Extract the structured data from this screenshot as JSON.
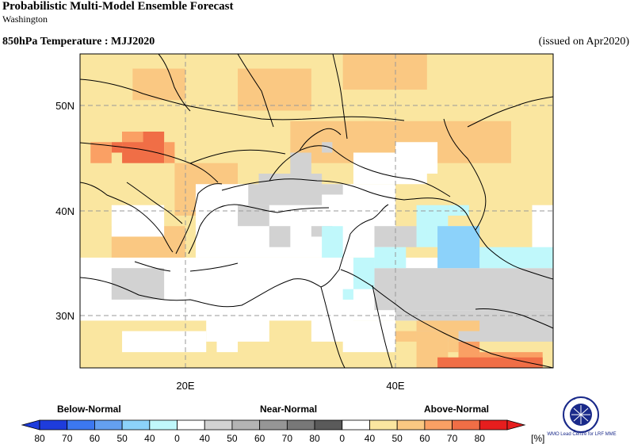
{
  "header": {
    "title": "Probabilistic Multi-Model Ensemble Forecast",
    "subtitle": "Washington",
    "variable": "850hPa Temperature : MJJ2020",
    "issued": "(issued on Apr2020)"
  },
  "map": {
    "lon_labels": [
      "20E",
      "40E"
    ],
    "lat_labels": [
      "50N",
      "40N",
      "30N"
    ],
    "cells": [
      {
        "lon": [
          10,
          56
        ],
        "lat": [
          24.5,
          55
        ],
        "c": "a40"
      },
      {
        "lon": [
          15,
          20
        ],
        "lat": [
          50,
          53
        ],
        "c": "a50"
      },
      {
        "lon": [
          25,
          32
        ],
        "lat": [
          49,
          53
        ],
        "c": "a50"
      },
      {
        "lon": [
          35,
          43
        ],
        "lat": [
          51,
          55
        ],
        "c": "a50"
      },
      {
        "lon": [
          30,
          38
        ],
        "lat": [
          44,
          48
        ],
        "c": "a50"
      },
      {
        "lon": [
          37,
          51
        ],
        "lat": [
          44,
          48
        ],
        "c": "a50"
      },
      {
        "lon": [
          19,
          25
        ],
        "lat": [
          39,
          44
        ],
        "c": "a50"
      },
      {
        "lon": [
          13,
          20
        ],
        "lat": [
          34,
          38
        ],
        "c": "a50"
      },
      {
        "lon": [
          10,
          56
        ],
        "lat": [
          29,
          35
        ],
        "c": "w"
      },
      {
        "lon": [
          13,
          18
        ],
        "lat": [
          37,
          40
        ],
        "c": "w"
      },
      {
        "lon": [
          21,
          40
        ],
        "lat": [
          35,
          42
        ],
        "c": "w"
      },
      {
        "lon": [
          36,
          43
        ],
        "lat": [
          42,
          45
        ],
        "c": "w"
      },
      {
        "lon": [
          40,
          44
        ],
        "lat": [
          43,
          46
        ],
        "c": "w"
      },
      {
        "lon": [
          53,
          56
        ],
        "lat": [
          35,
          40
        ],
        "c": "w"
      },
      {
        "lon": [
          22,
          28
        ],
        "lat": [
          27,
          30
        ],
        "c": "w"
      },
      {
        "lon": [
          32,
          36
        ],
        "lat": [
          27,
          30
        ],
        "c": "w"
      },
      {
        "lon": [
          14,
          22
        ],
        "lat": [
          26,
          28
        ],
        "c": "w"
      },
      {
        "lon": [
          35,
          40
        ],
        "lat": [
          26,
          29
        ],
        "c": "w"
      },
      {
        "lon": [
          23,
          25
        ],
        "lat": [
          26,
          30
        ],
        "c": "w"
      },
      {
        "lon": [
          26,
          28
        ],
        "lat": [
          40,
          42
        ],
        "c": "n40"
      },
      {
        "lon": [
          27,
          33
        ],
        "lat": [
          40,
          43
        ],
        "c": "n40"
      },
      {
        "lon": [
          25,
          28
        ],
        "lat": [
          38,
          40
        ],
        "c": "n40"
      },
      {
        "lon": [
          28,
          30
        ],
        "lat": [
          36,
          38
        ],
        "c": "n40"
      },
      {
        "lon": [
          30,
          32
        ],
        "lat": [
          41,
          45
        ],
        "c": "n40"
      },
      {
        "lon": [
          32,
          35
        ],
        "lat": [
          41,
          42
        ],
        "c": "n40"
      },
      {
        "lon": [
          33,
          34
        ],
        "lat": [
          45,
          46
        ],
        "c": "n40"
      },
      {
        "lon": [
          32,
          34
        ],
        "lat": [
          37,
          38
        ],
        "c": "n40"
      },
      {
        "lon": [
          38,
          42
        ],
        "lat": [
          36,
          38
        ],
        "c": "n40"
      },
      {
        "lon": [
          13,
          18
        ],
        "lat": [
          31,
          34
        ],
        "c": "n40"
      },
      {
        "lon": [
          38,
          56
        ],
        "lat": [
          30,
          34
        ],
        "c": "n40"
      },
      {
        "lon": [
          42,
          56
        ],
        "lat": [
          27,
          30
        ],
        "c": "n40"
      },
      {
        "lon": [
          40,
          42
        ],
        "lat": [
          29,
          30
        ],
        "c": "n40"
      },
      {
        "lon": [
          33,
          35
        ],
        "lat": [
          35,
          38
        ],
        "c": "b40"
      },
      {
        "lon": [
          36,
          38
        ],
        "lat": [
          32,
          35
        ],
        "c": "b40"
      },
      {
        "lon": [
          35,
          36
        ],
        "lat": [
          31,
          32
        ],
        "c": "b40"
      },
      {
        "lon": [
          38,
          41
        ],
        "lat": [
          34,
          36
        ],
        "c": "b40"
      },
      {
        "lon": [
          42,
          45
        ],
        "lat": [
          36,
          40
        ],
        "c": "b40"
      },
      {
        "lon": [
          45,
          47
        ],
        "lat": [
          39,
          40
        ],
        "c": "b40"
      },
      {
        "lon": [
          48,
          56
        ],
        "lat": [
          34,
          36
        ],
        "c": "b40"
      },
      {
        "lon": [
          43,
          48
        ],
        "lat": [
          37,
          38
        ],
        "c": "b40"
      },
      {
        "lon": [
          44,
          48
        ],
        "lat": [
          34,
          38
        ],
        "c": "b50"
      },
      {
        "lon": [
          42,
          48
        ],
        "lat": [
          28,
          29
        ],
        "c": "a50"
      },
      {
        "lon": [
          40,
          42
        ],
        "lat": [
          27,
          28
        ],
        "c": "a50"
      },
      {
        "lon": [
          42,
          45
        ],
        "lat": [
          24.5,
          28
        ],
        "c": "a50"
      },
      {
        "lon": [
          45,
          46
        ],
        "lat": [
          26,
          28
        ],
        "c": "a50"
      },
      {
        "lon": [
          46,
          48
        ],
        "lat": [
          25,
          27
        ],
        "c": "a60"
      },
      {
        "lon": [
          46,
          48
        ],
        "lat": [
          25,
          26
        ],
        "c": "a60"
      },
      {
        "lon": [
          48,
          54
        ],
        "lat": [
          24.5,
          26
        ],
        "c": "a60"
      },
      {
        "lon": [
          44,
          54
        ],
        "lat": [
          24.5,
          25.5
        ],
        "c": "a70"
      },
      {
        "lon": [
          14,
          18
        ],
        "lat": [
          44,
          47
        ],
        "c": "a70"
      },
      {
        "lon": [
          13,
          14
        ],
        "lat": [
          45,
          46
        ],
        "c": "a70"
      },
      {
        "lon": [
          11,
          13
        ],
        "lat": [
          44,
          46
        ],
        "c": "a60"
      },
      {
        "lon": [
          14,
          16
        ],
        "lat": [
          46,
          47
        ],
        "c": "a60"
      },
      {
        "lon": [
          18,
          19
        ],
        "lat": [
          44,
          46
        ],
        "c": "a60"
      }
    ]
  },
  "colorbar": {
    "groups": [
      "Below-Normal",
      "Near-Normal",
      "Above-Normal"
    ],
    "below_ticks": [
      "80",
      "70",
      "60",
      "50",
      "40"
    ],
    "near_ticks": [
      "0",
      "40",
      "50",
      "60",
      "70",
      "80"
    ],
    "above_ticks": [
      "0",
      "40",
      "50",
      "60",
      "70",
      "80"
    ],
    "unit": "[%]",
    "colors": {
      "below": [
        "#1e3cdc",
        "#3c78f0",
        "#64a0f0",
        "#8cd2fa",
        "#c0f8fb"
      ],
      "near": [
        "#d2d2d2",
        "#b4b4b4",
        "#969696",
        "#787878",
        "#5a5a5a"
      ],
      "above": [
        "#fae6a0",
        "#fac882",
        "#faa064",
        "#f06e46",
        "#e61e1e"
      ],
      "white": "#ffffff"
    }
  },
  "logo": {
    "icon": "wmo-emblem-icon",
    "text": "WMO Lead Centre for LRF MME"
  }
}
